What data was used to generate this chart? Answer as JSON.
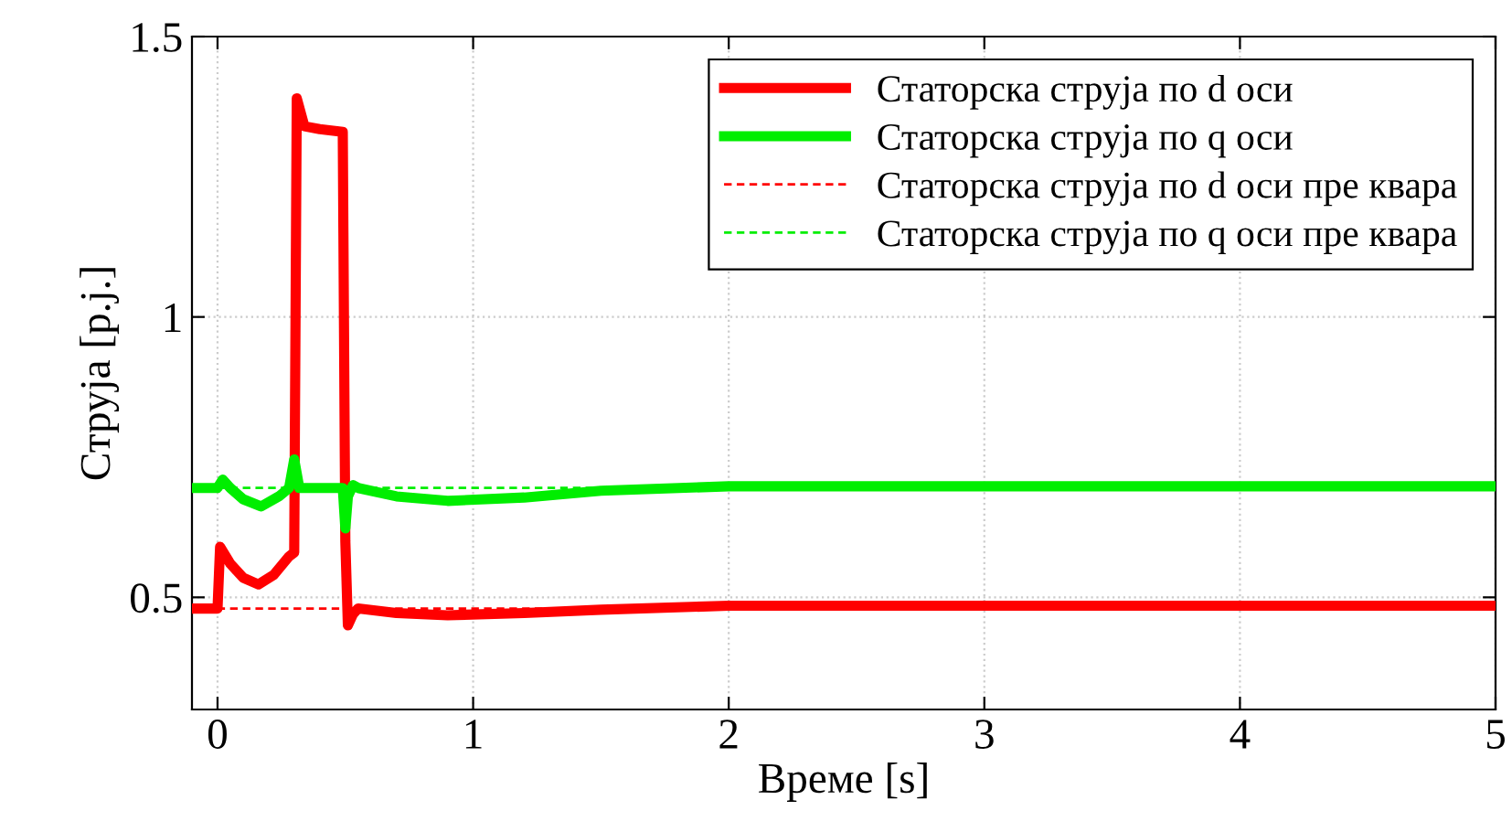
{
  "chart_data": {
    "type": "line",
    "xlabel": "Време [s]",
    "ylabel": "Струја [p.j.]",
    "xlim": [
      -0.1,
      5
    ],
    "ylim": [
      0.3,
      1.5
    ],
    "xticks": [
      0,
      1,
      2,
      3,
      4,
      5
    ],
    "yticks": [
      0.5,
      1,
      1.5
    ],
    "grid": true,
    "legend": "top right",
    "series": [
      {
        "name": "Статорска струја по d оси",
        "color": "#ff0000",
        "line_style": "solid",
        "x": [
          -0.1,
          -0.01,
          0,
          0.01,
          0.05,
          0.1,
          0.16,
          0.22,
          0.28,
          0.3,
          0.31,
          0.34,
          0.4,
          0.49,
          0.5,
          0.51,
          0.53,
          0.55,
          0.7,
          0.9,
          1.2,
          1.5,
          2,
          3,
          4,
          5
        ],
        "values": [
          0.48,
          0.48,
          0.48,
          0.59,
          0.56,
          0.535,
          0.523,
          0.54,
          0.573,
          0.58,
          1.39,
          1.34,
          1.335,
          1.33,
          0.6,
          0.45,
          0.47,
          0.48,
          0.472,
          0.468,
          0.472,
          0.478,
          0.485,
          0.485,
          0.485,
          0.485
        ]
      },
      {
        "name": "Статорска струја по q оси",
        "color": "#00ee00",
        "line_style": "solid",
        "x": [
          -0.1,
          0,
          0.02,
          0.05,
          0.1,
          0.17,
          0.24,
          0.28,
          0.3,
          0.32,
          0.4,
          0.49,
          0.5,
          0.51,
          0.53,
          0.55,
          0.7,
          0.9,
          1.2,
          1.5,
          2,
          3,
          4,
          5
        ],
        "values": [
          0.695,
          0.695,
          0.71,
          0.695,
          0.675,
          0.662,
          0.68,
          0.695,
          0.746,
          0.695,
          0.695,
          0.695,
          0.623,
          0.68,
          0.7,
          0.695,
          0.68,
          0.672,
          0.678,
          0.69,
          0.698,
          0.698,
          0.698,
          0.698
        ]
      },
      {
        "name": "Статорска струја по d оси пре квара",
        "color": "#ff0000",
        "line_style": "dashed",
        "x": [
          -0.1,
          5
        ],
        "values": [
          0.48,
          0.48
        ]
      },
      {
        "name": "Статорска струја по q оси пре квара",
        "color": "#00ee00",
        "line_style": "dashed",
        "x": [
          -0.1,
          5
        ],
        "values": [
          0.695,
          0.695
        ]
      }
    ]
  }
}
